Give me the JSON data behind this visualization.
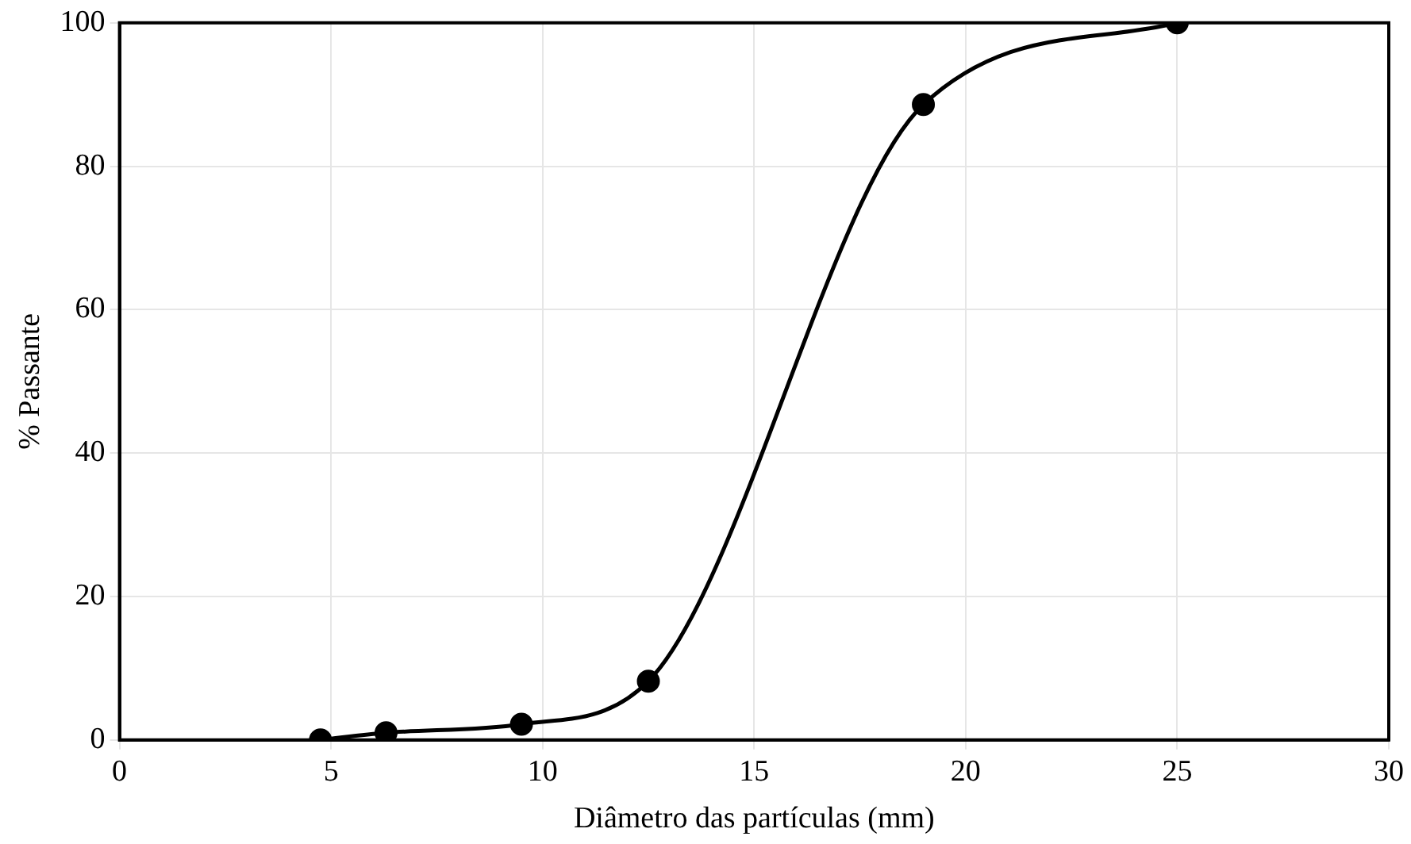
{
  "chart_data": {
    "type": "line",
    "xlabel": "Diâmetro das partículas (mm)",
    "ylabel": "% Passante",
    "x": [
      4.75,
      6.3,
      9.5,
      12.5,
      19,
      25
    ],
    "series": [
      {
        "color": "#000000",
        "values": [
          0,
          1,
          2.2,
          8.2,
          88.6,
          100
        ]
      }
    ],
    "xlim": [
      0,
      30
    ],
    "xticks": [
      0,
      5,
      10,
      15,
      20,
      25,
      30
    ],
    "ylim": [
      0,
      100
    ],
    "yticks": [
      0,
      20,
      40,
      60,
      80,
      100
    ],
    "grid": true,
    "marker": "circle",
    "line_style": "solid",
    "legend": false
  }
}
